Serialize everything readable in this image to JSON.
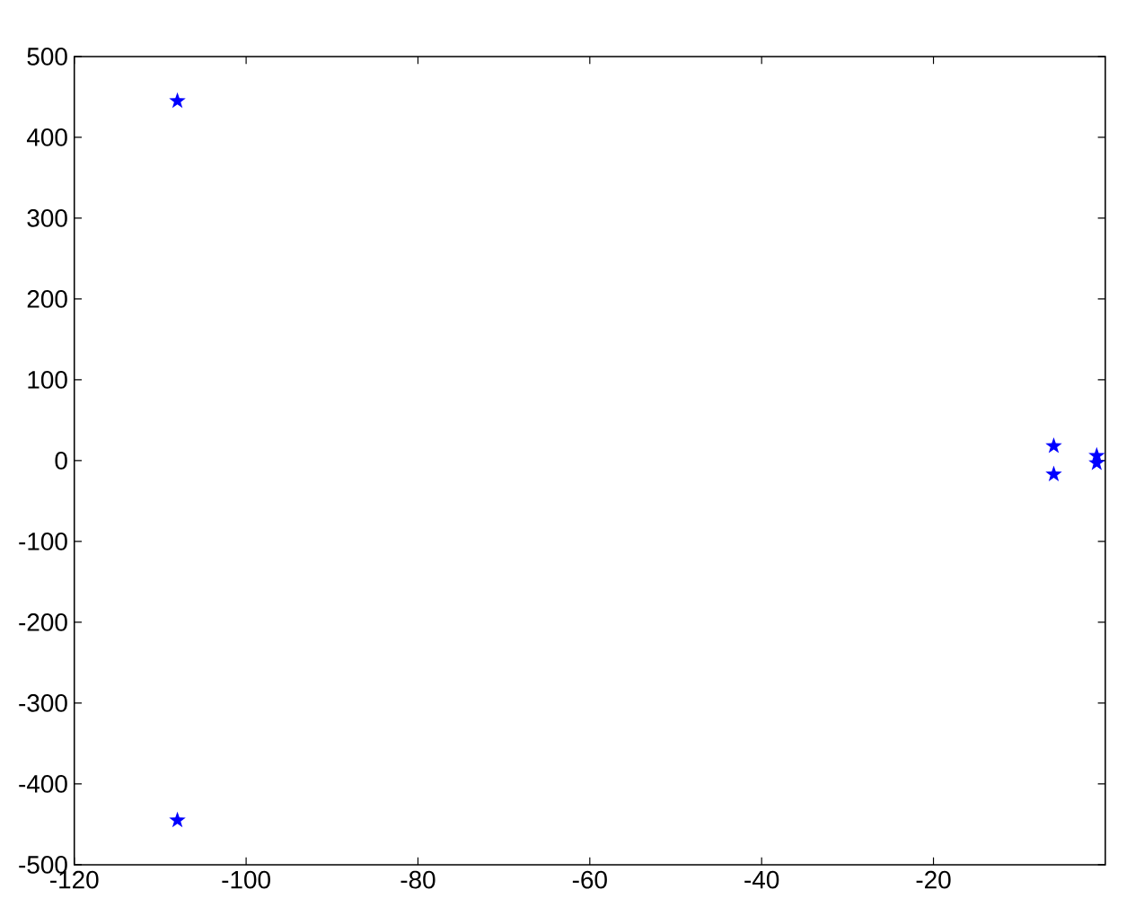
{
  "chart_data": {
    "type": "scatter",
    "marker": "star",
    "grid": false,
    "xlim": [
      -120,
      0
    ],
    "ylim": [
      -500,
      500
    ],
    "xticks": [
      -120,
      -100,
      -80,
      -60,
      -40,
      -20
    ],
    "yticks": [
      -500,
      -400,
      -300,
      -200,
      -100,
      0,
      100,
      200,
      300,
      400,
      500
    ],
    "series": [
      {
        "color": "#0000ff",
        "x": [
          -108,
          -108,
          -6,
          -6,
          -1,
          -1
        ],
        "values": [
          445,
          -445,
          18,
          -17,
          6,
          -3
        ]
      }
    ]
  }
}
